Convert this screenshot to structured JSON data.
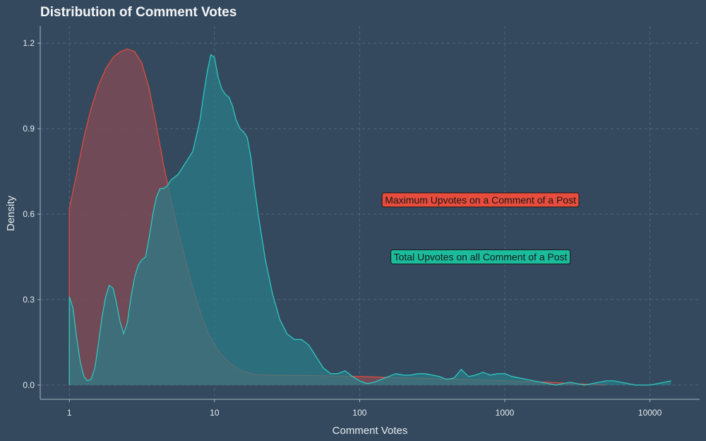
{
  "chart_data": {
    "type": "area",
    "title": "Distribution of Comment Votes",
    "xlabel": "Comment Votes",
    "ylabel": "Density",
    "x_scale": "log10",
    "xlim": [
      0.63,
      22000
    ],
    "ylim": [
      -0.05,
      1.26
    ],
    "x_ticks": [
      1,
      10,
      100,
      1000,
      10000
    ],
    "x_tick_labels": [
      "1",
      "10",
      "100",
      "1000",
      "10000"
    ],
    "y_ticks": [
      0,
      0.3,
      0.6,
      0.9,
      1.2
    ],
    "y_tick_labels": [
      "0.0",
      "0.3",
      "0.6",
      "0.9",
      "1.2"
    ],
    "grid": true,
    "series": [
      {
        "color": "#e74c3c",
        "fill": "#7b4a55",
        "x": [
          1,
          1.12,
          1.26,
          1.41,
          1.58,
          1.78,
          2.0,
          2.24,
          2.51,
          2.82,
          3.16,
          3.55,
          3.98,
          4.47,
          5.01,
          5.62,
          6.31,
          7.08,
          7.94,
          8.91,
          10,
          11.2,
          12.6,
          14.1,
          15.8,
          17.8,
          20,
          25.1,
          31.6,
          50.1,
          100,
          200,
          500,
          1000,
          2000,
          3000,
          5000
        ],
        "y": [
          0.62,
          0.74,
          0.87,
          0.97,
          1.05,
          1.11,
          1.15,
          1.17,
          1.18,
          1.17,
          1.13,
          1.04,
          0.91,
          0.77,
          0.65,
          0.54,
          0.44,
          0.34,
          0.26,
          0.19,
          0.14,
          0.105,
          0.08,
          0.06,
          0.048,
          0.04,
          0.036,
          0.034,
          0.034,
          0.033,
          0.03,
          0.025,
          0.02,
          0.015,
          0.01,
          0.005,
          0.0
        ]
      },
      {
        "color": "#2ecec6",
        "fill": "#2a7d88",
        "x": [
          1,
          1.06,
          1.12,
          1.19,
          1.26,
          1.33,
          1.41,
          1.5,
          1.58,
          1.68,
          1.78,
          1.88,
          2.0,
          2.11,
          2.24,
          2.37,
          2.51,
          2.66,
          2.82,
          2.98,
          3.16,
          3.35,
          3.55,
          3.76,
          3.98,
          4.22,
          4.47,
          4.73,
          5.01,
          5.31,
          5.62,
          6.31,
          7.08,
          7.94,
          8.41,
          8.91,
          9.44,
          10,
          10.6,
          11.2,
          11.9,
          12.6,
          13.3,
          14.1,
          15.0,
          15.8,
          16.8,
          17.8,
          18.8,
          20,
          22.4,
          25.1,
          28.2,
          31.6,
          35.5,
          39.8,
          44.7,
          50.1,
          56.2,
          63.1,
          70.8,
          79.4,
          89.1,
          100,
          112,
          126,
          141,
          158,
          178,
          200,
          224,
          251,
          282,
          316,
          355,
          398,
          447,
          501,
          562,
          631,
          708,
          794,
          891,
          1000,
          1122,
          1259,
          1413,
          1585,
          1778,
          2000,
          2239,
          2512,
          2818,
          3162,
          3548,
          3981,
          4467,
          5012,
          5623,
          6310,
          7079,
          7943,
          8913,
          10000,
          11220,
          12589,
          14000
        ],
        "y": [
          0.31,
          0.27,
          0.17,
          0.08,
          0.03,
          0.015,
          0.02,
          0.06,
          0.14,
          0.24,
          0.31,
          0.35,
          0.34,
          0.29,
          0.22,
          0.18,
          0.22,
          0.31,
          0.38,
          0.42,
          0.44,
          0.45,
          0.52,
          0.6,
          0.66,
          0.69,
          0.69,
          0.7,
          0.72,
          0.73,
          0.74,
          0.78,
          0.82,
          0.93,
          1.02,
          1.1,
          1.16,
          1.15,
          1.08,
          1.04,
          1.02,
          1.01,
          0.98,
          0.93,
          0.9,
          0.89,
          0.87,
          0.8,
          0.7,
          0.6,
          0.44,
          0.32,
          0.23,
          0.18,
          0.16,
          0.16,
          0.14,
          0.1,
          0.06,
          0.04,
          0.04,
          0.05,
          0.03,
          0.015,
          0.005,
          0.01,
          0.02,
          0.03,
          0.04,
          0.035,
          0.035,
          0.04,
          0.04,
          0.035,
          0.03,
          0.02,
          0.025,
          0.055,
          0.03,
          0.035,
          0.045,
          0.035,
          0.04,
          0.04,
          0.03,
          0.025,
          0.02,
          0.015,
          0.01,
          0.005,
          0.0,
          0.005,
          0.01,
          0.005,
          0.0,
          0.005,
          0.01,
          0.015,
          0.015,
          0.01,
          0.005,
          0.0,
          0.0,
          0.0,
          0.005,
          0.01,
          0.015
        ]
      }
    ],
    "annotations": [
      {
        "text": "Maximum Upvotes on a Comment of a Post",
        "x": 680,
        "y": 0.65,
        "fill": "#e74c3c"
      },
      {
        "text": "Total Upvotes on all Comment of a Post",
        "x": 680,
        "y": 0.45,
        "fill": "#1abc9c"
      }
    ]
  }
}
